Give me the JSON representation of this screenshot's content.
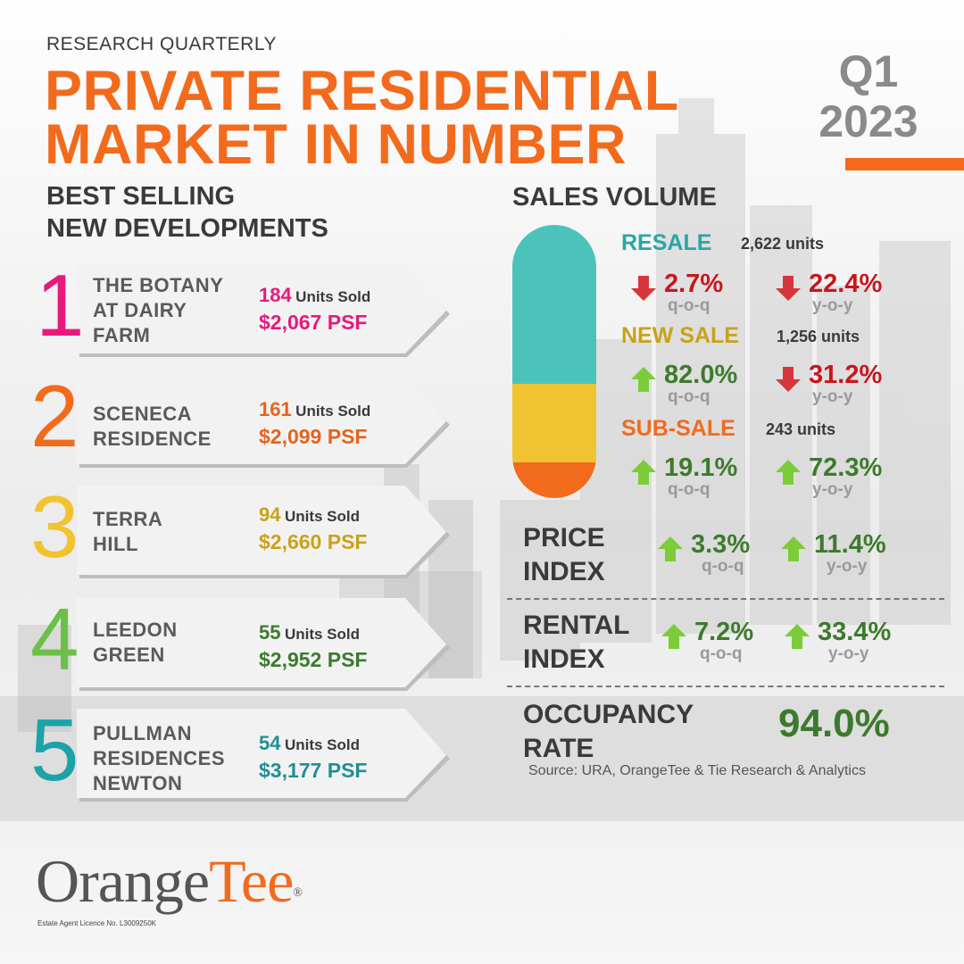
{
  "header": {
    "kicker": "RESEARCH QUARTERLY",
    "title_line1": "PRIVATE RESIDENTIAL",
    "title_line2": "MARKET IN NUMBER",
    "quarter": "Q1",
    "year": "2023"
  },
  "best_selling": {
    "title_line1": "BEST SELLING",
    "title_line2": "NEW DEVELOPMENTS",
    "items": [
      {
        "rank": "1",
        "name_lines": [
          "THE BOTANY",
          "AT DAIRY",
          "FARM"
        ],
        "units": "184",
        "units_label": "Units Sold",
        "psf": "$2,067 PSF",
        "color": "#e8197d"
      },
      {
        "rank": "2",
        "name_lines": [
          "SCENECA",
          "RESIDENCE"
        ],
        "units": "161",
        "units_label": "Units Sold",
        "psf": "$2,099 PSF",
        "color": "#e6631c"
      },
      {
        "rank": "3",
        "name_lines": [
          "TERRA",
          "HILL"
        ],
        "units": "94",
        "units_label": "Units Sold",
        "psf": "$2,660 PSF",
        "color": "#c9a21a"
      },
      {
        "rank": "4",
        "name_lines": [
          "LEEDON",
          "GREEN"
        ],
        "units": "55",
        "units_label": "Units Sold",
        "psf": "$2,952 PSF",
        "color": "#3d7a2d"
      },
      {
        "rank": "5",
        "name_lines": [
          "PULLMAN",
          "RESIDENCES",
          "NEWTON"
        ],
        "units": "54",
        "units_label": "Units Sold",
        "psf": "$3,177 PSF",
        "color": "#1f8f93"
      }
    ],
    "rank_colors": [
      "#e8197d",
      "#f26b1d",
      "#f0c330",
      "#6cc04a",
      "#1ba3a8"
    ]
  },
  "sales_volume": {
    "title": "SALES VOLUME",
    "resale": {
      "label": "RESALE",
      "units": "2,622 units",
      "qoq": "2.7%",
      "qoq_dir": "down",
      "yoy": "22.4%",
      "yoy_dir": "down",
      "color": "#2aa6a6"
    },
    "new_sale": {
      "label": "NEW SALE",
      "units": "1,256 units",
      "qoq": "82.0%",
      "qoq_dir": "up",
      "yoy": "31.2%",
      "yoy_dir": "down",
      "color": "#c9a21a"
    },
    "sub_sale": {
      "label": "SUB-SALE",
      "units": "243 units",
      "qoq": "19.1%",
      "qoq_dir": "up",
      "yoy": "72.3%",
      "yoy_dir": "up",
      "color": "#f26b1d"
    },
    "qoq_label": "q-o-q",
    "yoy_label": "y-o-y",
    "pill_colors": {
      "resale": "#4bc3bb",
      "new_sale": "#f0c330",
      "sub_sale": "#f26b1d"
    }
  },
  "price_index": {
    "label_line1": "PRICE",
    "label_line2": "INDEX",
    "qoq": "3.3%",
    "yoy": "11.4%"
  },
  "rental_index": {
    "label_line1": "RENTAL",
    "label_line2": "INDEX",
    "qoq": "7.2%",
    "yoy": "33.4%"
  },
  "occupancy": {
    "label_line1": "OCCUPANCY",
    "label_line2": "RATE",
    "value": "94.0%"
  },
  "source": "Source: URA, OrangeTee  & Tie Research  & Analytics",
  "footer": {
    "logo_part1": "Orange",
    "logo_part2": "Tee",
    "logo_reg": "®",
    "licence": "Estate Agent Licence No. L3009250K"
  },
  "colors": {
    "down": "#c8161d",
    "up": "#3d7a2d",
    "accent": "#f26b1d"
  }
}
